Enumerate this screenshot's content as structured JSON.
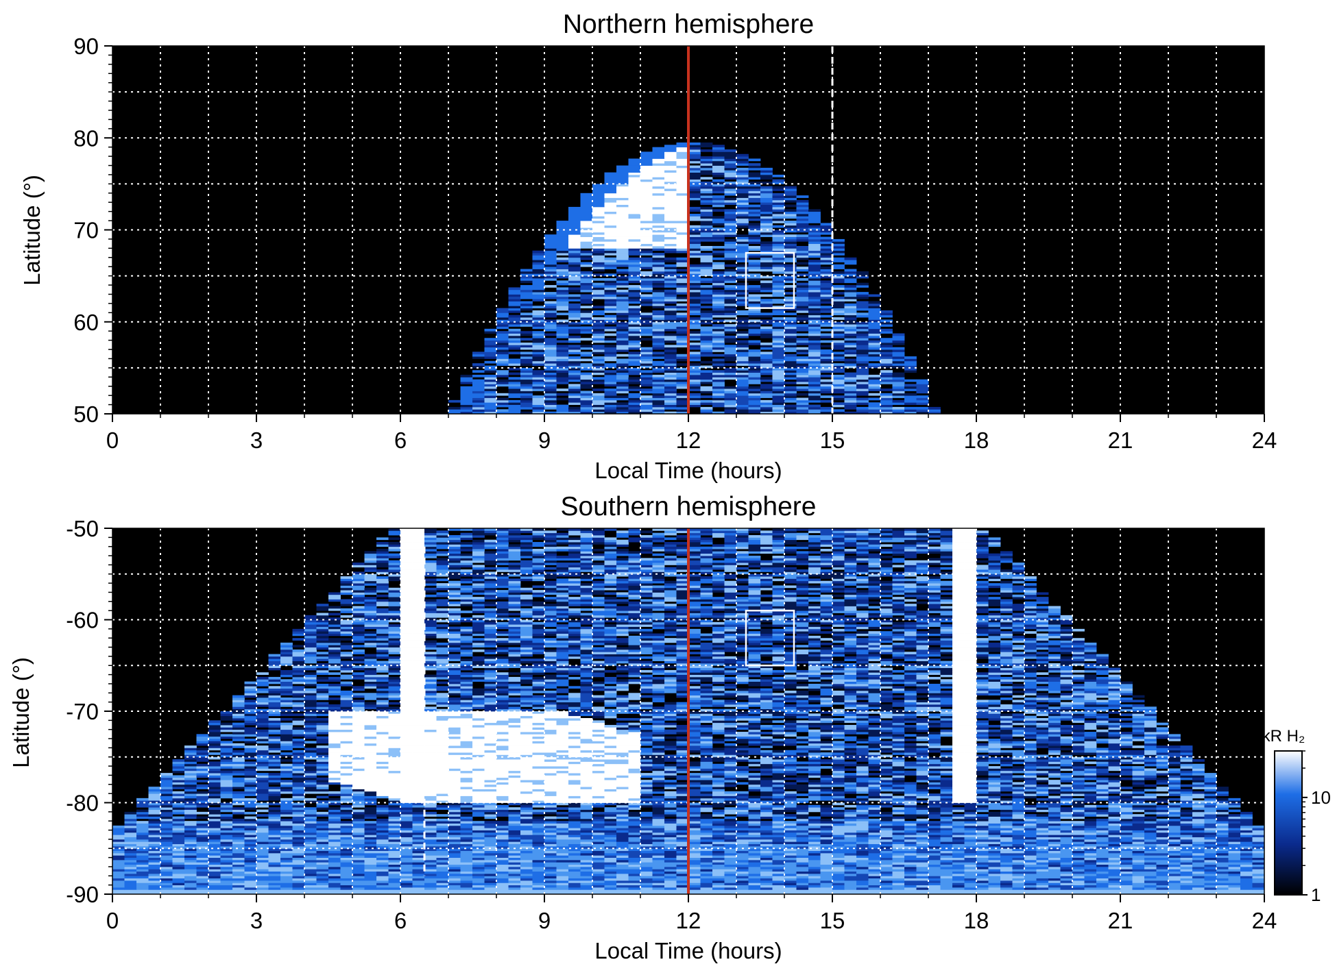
{
  "chart_data": [
    {
      "type": "heatmap",
      "title": "Northern hemisphere",
      "xlabel": "Local Time (hours)",
      "ylabel": "Latitude (°)",
      "xlim": [
        0,
        24
      ],
      "ylim": [
        50,
        90
      ],
      "x_ticks": [
        "0",
        "3",
        "6",
        "9",
        "12",
        "15",
        "18",
        "21",
        "24"
      ],
      "y_ticks": [
        "50",
        "60",
        "70",
        "80",
        "90"
      ],
      "grid": true,
      "marker_line_x": 12,
      "marker_line_color": "#c8321e",
      "dashed_line_x": 15,
      "box": {
        "x": [
          13.2,
          14.2
        ],
        "y": [
          61.5,
          67.5
        ]
      },
      "coverage": {
        "center_x": 12.1,
        "half_width_at_50": 5.1,
        "top_lat": 79.5
      },
      "bright_region": {
        "x": [
          8.5,
          12.0
        ],
        "y": [
          68,
          79.5
        ],
        "level_kR": 20
      }
    },
    {
      "type": "heatmap",
      "title": "Southern hemisphere",
      "xlabel": "Local Time (hours)",
      "ylabel": "Latitude (°)",
      "xlim": [
        0,
        24
      ],
      "ylim": [
        -90,
        -50
      ],
      "x_ticks": [
        "0",
        "3",
        "6",
        "9",
        "12",
        "15",
        "18",
        "21",
        "24"
      ],
      "y_ticks": [
        "-90",
        "-80",
        "-70",
        "-60",
        "-50"
      ],
      "grid": true,
      "marker_line_x": 12,
      "marker_line_color": "#c8321e",
      "dashed_line_x": 6.5,
      "box": {
        "x": [
          13.2,
          14.2
        ],
        "y": [
          -65,
          -59
        ]
      },
      "bright_region": {
        "x": [
          4.5,
          11.0
        ],
        "y": [
          -80,
          -70
        ],
        "level_kR": 20
      },
      "colorbar": {
        "label": "kR H₂",
        "ticks": [
          "1",
          "10"
        ],
        "scale": "log",
        "range": [
          1,
          30
        ],
        "colors": [
          "#000000",
          "#0a2a8c",
          "#1e6ee6",
          "#ffffff"
        ]
      }
    }
  ]
}
